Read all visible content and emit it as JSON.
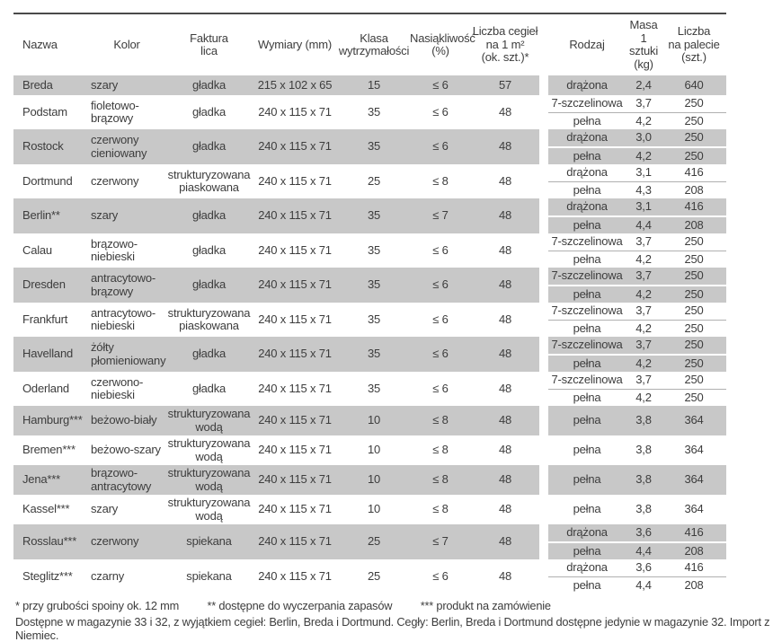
{
  "table": {
    "columns": [
      {
        "key": "nazwa",
        "label": "Nazwa"
      },
      {
        "key": "kolor",
        "label": "Kolor"
      },
      {
        "key": "faktura",
        "label": "Faktura\nlica"
      },
      {
        "key": "wymiary",
        "label": "Wymiary (mm)"
      },
      {
        "key": "klasa",
        "label": "Klasa\nwytrzymałości"
      },
      {
        "key": "nasiakliwosc",
        "label": "Nasiąkliwość\n(%)"
      },
      {
        "key": "liczba_m2",
        "label": "Liczba cegieł\nna 1 m²\n(ok. szt.)*"
      },
      {
        "key": "rodzaj",
        "label": "Rodzaj"
      },
      {
        "key": "masa",
        "label": "Masa\n1 sztuki\n(kg)"
      },
      {
        "key": "palecie",
        "label": "Liczba\nna palecie\n(szt.)"
      }
    ],
    "rows": [
      {
        "nazwa": "Breda",
        "kolor": "szary",
        "faktura": "gładka",
        "wymiary": "215 x 102 x 65",
        "klasa": "15",
        "nasiakliwosc": "≤ 6",
        "liczba_m2": "57",
        "variants": [
          {
            "rodzaj": "drążona",
            "masa": "2,4",
            "palecie": "640"
          }
        ]
      },
      {
        "nazwa": "Podstam",
        "kolor": "fioletowo-\nbrązowy",
        "faktura": "gładka",
        "wymiary": "240 x 115 x 71",
        "klasa": "35",
        "nasiakliwosc": "≤ 6",
        "liczba_m2": "48",
        "variants": [
          {
            "rodzaj": "7-szczelinowa",
            "masa": "3,7",
            "palecie": "250"
          },
          {
            "rodzaj": "pełna",
            "masa": "4,2",
            "palecie": "250"
          }
        ]
      },
      {
        "nazwa": "Rostock",
        "kolor": "czerwony\ncieniowany",
        "faktura": "gładka",
        "wymiary": "240 x 115 x 71",
        "klasa": "35",
        "nasiakliwosc": "≤ 6",
        "liczba_m2": "48",
        "variants": [
          {
            "rodzaj": "drążona",
            "masa": "3,0",
            "palecie": "250"
          },
          {
            "rodzaj": "pełna",
            "masa": "4,2",
            "palecie": "250"
          }
        ]
      },
      {
        "nazwa": "Dortmund",
        "kolor": "czerwony",
        "faktura": "strukturyzowana\npiaskowana",
        "wymiary": "240 x 115 x 71",
        "klasa": "25",
        "nasiakliwosc": "≤ 8",
        "liczba_m2": "48",
        "variants": [
          {
            "rodzaj": "drążona",
            "masa": "3,1",
            "palecie": "416"
          },
          {
            "rodzaj": "pełna",
            "masa": "4,3",
            "palecie": "208"
          }
        ]
      },
      {
        "nazwa": "Berlin**",
        "kolor": "szary",
        "faktura": "gładka",
        "wymiary": "240 x 115 x 71",
        "klasa": "35",
        "nasiakliwosc": "≤ 7",
        "liczba_m2": "48",
        "variants": [
          {
            "rodzaj": "drążona",
            "masa": "3,1",
            "palecie": "416"
          },
          {
            "rodzaj": "pełna",
            "masa": "4,4",
            "palecie": "208"
          }
        ]
      },
      {
        "nazwa": "Calau",
        "kolor": "brązowo-\nniebieski",
        "faktura": "gładka",
        "wymiary": "240 x 115 x 71",
        "klasa": "35",
        "nasiakliwosc": "≤ 6",
        "liczba_m2": "48",
        "variants": [
          {
            "rodzaj": "7-szczelinowa",
            "masa": "3,7",
            "palecie": "250"
          },
          {
            "rodzaj": "pełna",
            "masa": "4,2",
            "palecie": "250"
          }
        ]
      },
      {
        "nazwa": "Dresden",
        "kolor": "antracytowo-\nbrązowy",
        "faktura": "gładka",
        "wymiary": "240 x 115 x 71",
        "klasa": "35",
        "nasiakliwosc": "≤ 6",
        "liczba_m2": "48",
        "variants": [
          {
            "rodzaj": "7-szczelinowa",
            "masa": "3,7",
            "palecie": "250"
          },
          {
            "rodzaj": "pełna",
            "masa": "4,2",
            "palecie": "250"
          }
        ]
      },
      {
        "nazwa": "Frankfurt",
        "kolor": "antracytowo-\nniebieski",
        "faktura": "strukturyzowana\npiaskowana",
        "wymiary": "240 x 115 x 71",
        "klasa": "35",
        "nasiakliwosc": "≤ 6",
        "liczba_m2": "48",
        "variants": [
          {
            "rodzaj": "7-szczelinowa",
            "masa": "3,7",
            "palecie": "250"
          },
          {
            "rodzaj": "pełna",
            "masa": "4,2",
            "palecie": "250"
          }
        ]
      },
      {
        "nazwa": "Havelland",
        "kolor": "żółty\npłomieniowany",
        "faktura": "gładka",
        "wymiary": "240 x 115 x 71",
        "klasa": "35",
        "nasiakliwosc": "≤ 6",
        "liczba_m2": "48",
        "variants": [
          {
            "rodzaj": "7-szczelinowa",
            "masa": "3,7",
            "palecie": "250"
          },
          {
            "rodzaj": "pełna",
            "masa": "4,2",
            "palecie": "250"
          }
        ]
      },
      {
        "nazwa": "Oderland",
        "kolor": "czerwono-\nniebieski",
        "faktura": "gładka",
        "wymiary": "240 x 115 x 71",
        "klasa": "35",
        "nasiakliwosc": "≤ 6",
        "liczba_m2": "48",
        "variants": [
          {
            "rodzaj": "7-szczelinowa",
            "masa": "3,7",
            "palecie": "250"
          },
          {
            "rodzaj": "pełna",
            "masa": "4,2",
            "palecie": "250"
          }
        ]
      },
      {
        "nazwa": "Hamburg***",
        "kolor": "beżowo-biały",
        "faktura": "strukturyzowana\nwodą",
        "wymiary": "240 x 115 x 71",
        "klasa": "10",
        "nasiakliwosc": "≤ 8",
        "liczba_m2": "48",
        "variants": [
          {
            "rodzaj": "pełna",
            "masa": "3,8",
            "palecie": "364"
          }
        ]
      },
      {
        "nazwa": "Bremen***",
        "kolor": "beżowo-szary",
        "faktura": "strukturyzowana\nwodą",
        "wymiary": "240 x 115 x 71",
        "klasa": "10",
        "nasiakliwosc": "≤ 8",
        "liczba_m2": "48",
        "variants": [
          {
            "rodzaj": "pełna",
            "masa": "3,8",
            "palecie": "364"
          }
        ]
      },
      {
        "nazwa": "Jena***",
        "kolor": "brązowo-\nantracytowy",
        "faktura": "strukturyzowana\nwodą",
        "wymiary": "240 x 115 x 71",
        "klasa": "10",
        "nasiakliwosc": "≤ 8",
        "liczba_m2": "48",
        "variants": [
          {
            "rodzaj": "pełna",
            "masa": "3,8",
            "palecie": "364"
          }
        ]
      },
      {
        "nazwa": "Kassel***",
        "kolor": "szary",
        "faktura": "strukturyzowana\nwodą",
        "wymiary": "240 x 115 x 71",
        "klasa": "10",
        "nasiakliwosc": "≤ 8",
        "liczba_m2": "48",
        "variants": [
          {
            "rodzaj": "pełna",
            "masa": "3,8",
            "palecie": "364"
          }
        ]
      },
      {
        "nazwa": "Rosslau***",
        "kolor": "czerwony",
        "faktura": "spiekana",
        "wymiary": "240 x 115 x 71",
        "klasa": "25",
        "nasiakliwosc": "≤ 7",
        "liczba_m2": "48",
        "variants": [
          {
            "rodzaj": "drążona",
            "masa": "3,6",
            "palecie": "416"
          },
          {
            "rodzaj": "pełna",
            "masa": "4,4",
            "palecie": "208"
          }
        ]
      },
      {
        "nazwa": "Steglitz***",
        "kolor": "czarny",
        "faktura": "spiekana",
        "wymiary": "240 x 115 x 71",
        "klasa": "25",
        "nasiakliwosc": "≤ 6",
        "liczba_m2": "48",
        "variants": [
          {
            "rodzaj": "drążona",
            "masa": "3,6",
            "palecie": "416"
          },
          {
            "rodzaj": "pełna",
            "masa": "4,4",
            "palecie": "208"
          }
        ]
      }
    ]
  },
  "footnotes": [
    "* przy grubości spoiny ok. 12 mm",
    "** dostępne do wyczerpania zapasów",
    "*** produkt na zamówienie"
  ],
  "availability_note": "Dostępne w magazynie 33 i 32, z wyjątkiem cegieł: Berlin, Breda i Dortmund. Cegły: Berlin, Breda i Dortmund dostępne jedynie w magazynie 32. Import z Niemiec.",
  "colors": {
    "band_gray": "#c8c8c8",
    "top_rule": "#4a4a4a",
    "text": "#3d3d3d",
    "divider_light": "#b0b0b0"
  }
}
